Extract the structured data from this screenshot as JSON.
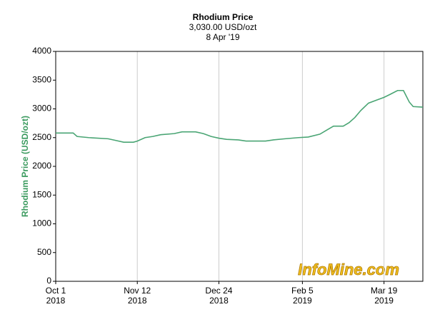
{
  "chart_data": {
    "type": "line",
    "title": "Rhodium Price",
    "subtitle": "3,030.00 USD/ozt",
    "date_label": "8 Apr '19",
    "y_label": "Rhodium Price (USD/ozt)",
    "watermark": "InfoMine.com",
    "x": [
      "2018-10-01",
      "2018-10-10",
      "2018-10-12",
      "2018-10-18",
      "2018-10-28",
      "2018-11-01",
      "2018-11-05",
      "2018-11-10",
      "2018-11-12",
      "2018-11-16",
      "2018-11-20",
      "2018-11-24",
      "2018-12-01",
      "2018-12-05",
      "2018-12-12",
      "2018-12-16",
      "2018-12-20",
      "2018-12-24",
      "2018-12-28",
      "2019-01-03",
      "2019-01-07",
      "2019-01-17",
      "2019-01-21",
      "2019-01-27",
      "2019-02-03",
      "2019-02-08",
      "2019-02-14",
      "2019-02-18",
      "2019-02-21",
      "2019-02-26",
      "2019-03-01",
      "2019-03-04",
      "2019-03-07",
      "2019-03-11",
      "2019-03-15",
      "2019-03-19",
      "2019-03-22",
      "2019-03-26",
      "2019-03-29",
      "2019-04-01",
      "2019-04-03",
      "2019-04-08"
    ],
    "series": [
      {
        "name": "Rhodium Price",
        "color": "#4aa574",
        "values": [
          2580,
          2580,
          2520,
          2500,
          2480,
          2450,
          2420,
          2420,
          2440,
          2500,
          2520,
          2550,
          2570,
          2600,
          2600,
          2570,
          2520,
          2490,
          2470,
          2460,
          2440,
          2440,
          2460,
          2480,
          2500,
          2510,
          2560,
          2640,
          2700,
          2700,
          2760,
          2850,
          2970,
          3100,
          3150,
          3200,
          3250,
          3320,
          3320,
          3120,
          3040,
          3030
        ]
      }
    ],
    "xlim": [
      "2018-10-01",
      "2019-04-08"
    ],
    "xticks": [
      {
        "value": "2018-10-01",
        "label": [
          "Oct 1",
          "2018"
        ]
      },
      {
        "value": "2018-11-12",
        "label": [
          "Nov 12",
          "2018"
        ]
      },
      {
        "value": "2018-12-24",
        "label": [
          "Dec 24",
          "2018"
        ]
      },
      {
        "value": "2019-02-05",
        "label": [
          "Feb 5",
          "2019"
        ]
      },
      {
        "value": "2019-03-19",
        "label": [
          "Mar 19",
          "2019"
        ]
      }
    ],
    "ylim": [
      0,
      4000
    ],
    "yticks": [
      0,
      500,
      1000,
      1500,
      2000,
      2500,
      3000,
      3500,
      4000
    ],
    "grid": "x"
  }
}
